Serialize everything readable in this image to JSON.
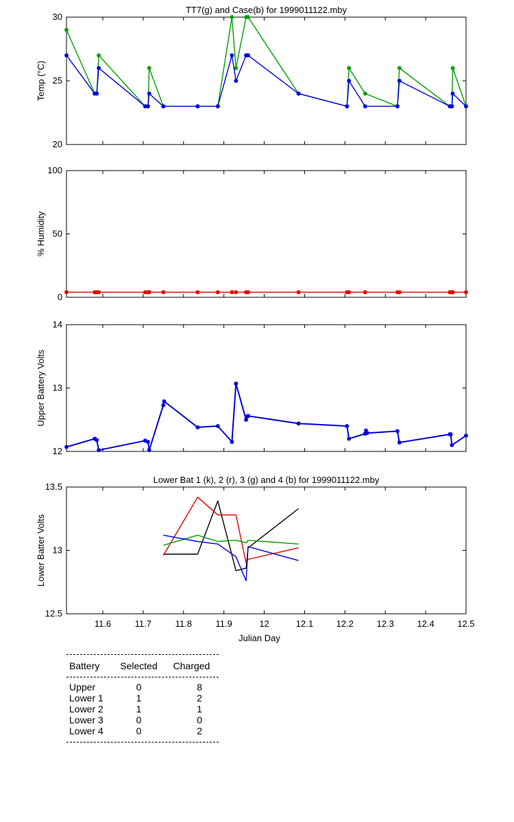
{
  "colors": {
    "green": "#00a000",
    "blue": "#0000e0",
    "red": "#e00000",
    "black": "#000000"
  },
  "chart_data": [
    {
      "type": "line",
      "title": "TT7(g) and Case(b) for 1999011122.mby",
      "ylabel": "Temp  (°C)",
      "xlim": [
        11.51,
        12.5
      ],
      "ylim": [
        20,
        30
      ],
      "yticks": [
        20,
        25,
        30
      ],
      "yticklabels": [
        "20",
        "25",
        "30"
      ],
      "series": [
        {
          "color": "green",
          "marker": "*",
          "x": [
            11.51,
            11.58,
            11.585,
            11.59,
            11.705,
            11.712,
            11.715,
            11.75,
            11.835,
            11.885,
            11.92,
            11.93,
            11.955,
            11.96,
            12.085,
            12.205,
            12.21,
            12.25,
            12.33,
            12.335,
            12.46,
            12.465,
            12.467,
            12.5
          ],
          "y": [
            29,
            24,
            24,
            27,
            23,
            23,
            26,
            23,
            23,
            23,
            30,
            26,
            30,
            30,
            24,
            23,
            26,
            24,
            23,
            26,
            23,
            23,
            26,
            23
          ]
        },
        {
          "color": "blue",
          "marker": "*",
          "x": [
            11.51,
            11.58,
            11.585,
            11.59,
            11.705,
            11.712,
            11.715,
            11.75,
            11.835,
            11.885,
            11.92,
            11.93,
            11.955,
            11.96,
            12.085,
            12.205,
            12.21,
            12.25,
            12.33,
            12.335,
            12.46,
            12.465,
            12.467,
            12.5
          ],
          "y": [
            27,
            24,
            24,
            26,
            23,
            23,
            24,
            23,
            23,
            23,
            27,
            25,
            27,
            27,
            24,
            23,
            25,
            23,
            23,
            25,
            23,
            23,
            24,
            23
          ]
        }
      ]
    },
    {
      "type": "line",
      "title": "",
      "ylabel": "% Humidity",
      "xlim": [
        11.51,
        12.5
      ],
      "ylim": [
        0,
        100
      ],
      "yticks": [
        0,
        50,
        100
      ],
      "yticklabels": [
        "0",
        "50",
        "100"
      ],
      "series": [
        {
          "color": "red",
          "marker": "*",
          "x": [
            11.51,
            11.58,
            11.585,
            11.59,
            11.705,
            11.712,
            11.715,
            11.75,
            11.835,
            11.885,
            11.92,
            11.93,
            11.955,
            11.96,
            12.085,
            12.205,
            12.21,
            12.25,
            12.33,
            12.335,
            12.46,
            12.465,
            12.467,
            12.5
          ],
          "y": [
            4,
            4,
            4,
            4,
            4,
            4,
            4,
            4,
            4,
            4,
            4,
            4,
            4,
            4,
            4,
            4,
            4,
            4,
            4,
            4,
            4,
            4,
            4,
            4
          ]
        }
      ]
    },
    {
      "type": "line",
      "title": "",
      "ylabel": "Upper Battery Volts",
      "xlim": [
        11.51,
        12.5
      ],
      "ylim": [
        12,
        14
      ],
      "yticks": [
        12,
        13,
        14
      ],
      "yticklabels": [
        "12",
        "13",
        "14"
      ],
      "series": [
        {
          "color": "blue",
          "marker": "*",
          "width": 2,
          "x": [
            11.51,
            11.58,
            11.585,
            11.59,
            11.705,
            11.712,
            11.715,
            11.75,
            11.752,
            11.835,
            11.885,
            11.92,
            11.93,
            11.955,
            11.957,
            11.96,
            12.085,
            12.205,
            12.21,
            12.25,
            12.252,
            12.255,
            12.33,
            12.335,
            12.46,
            12.462,
            12.465,
            12.5
          ],
          "y": [
            12.07,
            12.2,
            12.18,
            12.02,
            12.17,
            12.15,
            12.02,
            12.73,
            12.79,
            12.38,
            12.4,
            12.15,
            13.07,
            12.5,
            12.55,
            12.56,
            12.44,
            12.4,
            12.2,
            12.28,
            12.33,
            12.29,
            12.32,
            12.14,
            12.27,
            12.27,
            12.1,
            12.25
          ]
        }
      ]
    },
    {
      "type": "line",
      "title": "Lower Bat 1 (k), 2 (r), 3 (g) and 4 (b) for 1999011122.mby",
      "xlabel": "Julian Day",
      "ylabel": "Lower Batter Volts",
      "xlim": [
        11.51,
        12.5
      ],
      "ylim": [
        12.5,
        13.5
      ],
      "yticks": [
        12.5,
        13,
        13.5
      ],
      "yticklabels": [
        "12.5",
        "13",
        "13.5"
      ],
      "xticks": [
        11.6,
        11.7,
        11.8,
        11.9,
        12,
        12.1,
        12.2,
        12.3,
        12.4,
        12.5
      ],
      "xticklabels": [
        "11.6",
        "11.7",
        "11.8",
        "11.9",
        "12",
        "12.1",
        "12.2",
        "12.3",
        "12.4",
        "12.5"
      ],
      "series": [
        {
          "color": "black",
          "x": [
            11.75,
            11.835,
            11.885,
            11.93,
            11.955,
            11.96,
            12.085
          ],
          "y": [
            12.97,
            12.97,
            13.39,
            12.84,
            12.86,
            13.02,
            13.33
          ]
        },
        {
          "color": "red",
          "x": [
            11.75,
            11.835,
            11.885,
            11.93,
            11.955,
            11.96,
            12.085
          ],
          "y": [
            12.96,
            13.42,
            13.28,
            13.28,
            12.9,
            12.93,
            13.02
          ]
        },
        {
          "color": "green",
          "x": [
            11.75,
            11.835,
            11.885,
            11.93,
            11.955,
            11.96,
            12.085
          ],
          "y": [
            13.04,
            13.12,
            13.07,
            13.08,
            13.06,
            13.08,
            13.05
          ]
        },
        {
          "color": "blue",
          "x": [
            11.75,
            11.835,
            11.885,
            11.93,
            11.955,
            11.96,
            12.085
          ],
          "y": [
            13.12,
            13.07,
            13.05,
            12.95,
            12.76,
            13.03,
            12.92
          ]
        }
      ]
    }
  ],
  "summary": {
    "headers": {
      "battery": "Battery",
      "selected": "Selected",
      "charged": "Charged"
    },
    "rows": [
      {
        "battery": "Upper",
        "selected": "0",
        "charged": "8"
      },
      {
        "battery": "Lower 1",
        "selected": "1",
        "charged": "2"
      },
      {
        "battery": "Lower 2",
        "selected": "1",
        "charged": "1"
      },
      {
        "battery": "Lower 3",
        "selected": "0",
        "charged": "0"
      },
      {
        "battery": "Lower 4",
        "selected": "0",
        "charged": "2"
      }
    ]
  }
}
